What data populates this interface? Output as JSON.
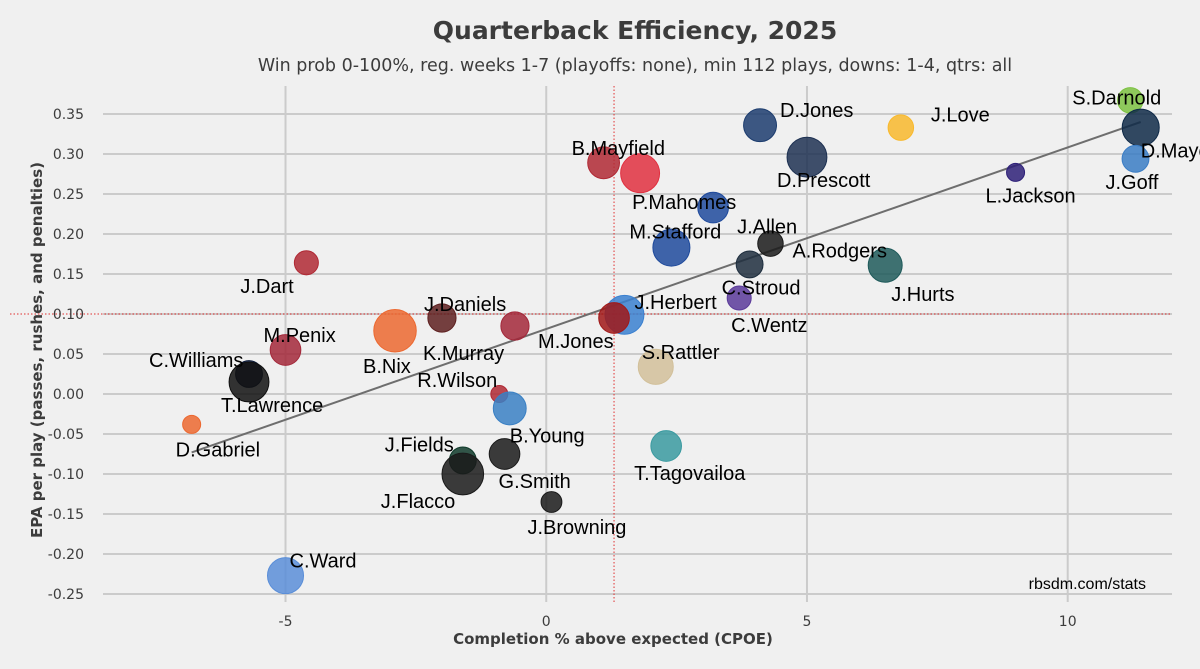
{
  "chart_data": {
    "type": "scatter",
    "title": "Quarterback Efficiency, 2025",
    "subtitle": "Win prob 0-100%, reg. weeks 1-7 (playoffs: none), min 112 plays, downs: 1-4, qtrs: all",
    "xlabel": "Completion % above expected (CPOE)",
    "ylabel": "EPA per play (passes, rushes, and penalties)",
    "credit": "rbsdm.com/stats",
    "xlim": [
      -8.5,
      12
    ],
    "ylim": [
      -0.26,
      0.385
    ],
    "x_ticks": [
      -5,
      0,
      5,
      10
    ],
    "x_tick_labels": [
      "-5",
      "0",
      "5",
      "10"
    ],
    "y_ticks": [
      -0.25,
      -0.2,
      -0.15,
      -0.1,
      -0.05,
      0.0,
      0.05,
      0.1,
      0.15,
      0.2,
      0.25,
      0.3,
      0.35
    ],
    "y_tick_labels": [
      "-0.25",
      "-0.20",
      "-0.15",
      "-0.10",
      "-0.05",
      "0.00",
      "0.05",
      "0.10",
      "0.15",
      "0.20",
      "0.25",
      "0.30",
      "0.35"
    ],
    "reference_lines": {
      "x": 1.3,
      "y": 0.1
    },
    "trend_line": {
      "x": [
        -6.8,
        11.4
      ],
      "y": [
        -0.073,
        0.34
      ]
    },
    "grid": true,
    "points": [
      {
        "label": "S.Darnold",
        "x": 11.2,
        "y": 0.367,
        "size": 180,
        "color": "#7dc242",
        "lx": -58,
        "ly": 4
      },
      {
        "label": "D.Maye",
        "x": 11.4,
        "y": 0.333,
        "size": 380,
        "color": "#0f2a48",
        "lx": 0,
        "ly": 30
      },
      {
        "label": "J.Goff",
        "x": 11.3,
        "y": 0.294,
        "size": 200,
        "color": "#3a7cc4",
        "lx": -30,
        "ly": 30
      },
      {
        "label": "J.Love",
        "x": 6.8,
        "y": 0.333,
        "size": 180,
        "color": "#f8b92d",
        "lx": 30,
        "ly": -6
      },
      {
        "label": "D.Jones",
        "x": 4.1,
        "y": 0.336,
        "size": 300,
        "color": "#1c3c6e",
        "lx": 20,
        "ly": -8
      },
      {
        "label": "D.Prescott",
        "x": 5.0,
        "y": 0.296,
        "size": 440,
        "color": "#1e3152",
        "lx": -30,
        "ly": 30
      },
      {
        "label": "L.Jackson",
        "x": 9.0,
        "y": 0.277,
        "size": 90,
        "color": "#2e2078",
        "lx": -30,
        "ly": 30
      },
      {
        "label": "B.Mayfield",
        "x": 1.1,
        "y": 0.289,
        "size": 280,
        "color": "#b02934",
        "lx": -32,
        "ly": -8
      },
      {
        "label": "P.Mahomes",
        "x": 1.8,
        "y": 0.276,
        "size": 420,
        "color": "#e03040",
        "lx": -8,
        "ly": 36
      },
      {
        "label": "J.Allen",
        "x": 3.2,
        "y": 0.233,
        "size": 260,
        "color": "#1f4a9c",
        "lx": 24,
        "ly": 26
      },
      {
        "label": "M.Stafford",
        "x": 2.4,
        "y": 0.183,
        "size": 380,
        "color": "#1f4a9c",
        "lx": -42,
        "ly": -9
      },
      {
        "label": "A.Rodgers",
        "x": 4.3,
        "y": 0.188,
        "size": 180,
        "color": "#1a1a1a",
        "lx": 22,
        "ly": 14
      },
      {
        "label": "C.Stroud",
        "x": 3.9,
        "y": 0.162,
        "size": 200,
        "color": "#1e2e3e",
        "lx": -28,
        "ly": 30
      },
      {
        "label": "J.Hurts",
        "x": 6.5,
        "y": 0.161,
        "size": 320,
        "color": "#1e5a5a",
        "lx": 6,
        "ly": 36
      },
      {
        "label": "C.Wentz",
        "x": 3.7,
        "y": 0.12,
        "size": 160,
        "color": "#5b3a9a",
        "lx": -8,
        "ly": 34
      },
      {
        "label": "J.Herbert",
        "x": 1.5,
        "y": 0.099,
        "size": 420,
        "color": "#3a80d0",
        "lx": 10,
        "ly": -6
      },
      {
        "label": "M.Jones",
        "x": 1.3,
        "y": 0.095,
        "size": 260,
        "color": "#a01818",
        "lx": -76,
        "ly": 30
      },
      {
        "label": "J.Daniels",
        "x": -2.0,
        "y": 0.095,
        "size": 220,
        "color": "#5e2020",
        "lx": -18,
        "ly": -7
      },
      {
        "label": "K.Murray",
        "x": -0.6,
        "y": 0.085,
        "size": 220,
        "color": "#a3283a",
        "lx": -92,
        "ly": 34
      },
      {
        "label": "B.Nix",
        "x": -2.9,
        "y": 0.079,
        "size": 500,
        "color": "#ec6830",
        "lx": -32,
        "ly": 42
      },
      {
        "label": "M.Penix",
        "x": -5.0,
        "y": 0.055,
        "size": 260,
        "color": "#a3283a",
        "lx": -22,
        "ly": -8
      },
      {
        "label": "J.Dart",
        "x": -4.6,
        "y": 0.164,
        "size": 160,
        "color": "#b02934",
        "lx": -66,
        "ly": 30
      },
      {
        "label": "C.Williams",
        "x": -5.7,
        "y": 0.025,
        "size": 200,
        "color": "#0c1a38",
        "lx": -100,
        "ly": -7
      },
      {
        "label": "T.Lawrence",
        "x": -5.7,
        "y": 0.015,
        "size": 440,
        "color": "#101010",
        "lx": -28,
        "ly": 30
      },
      {
        "label": "D.Gabriel",
        "x": -6.8,
        "y": -0.038,
        "size": 90,
        "color": "#ec6830",
        "lx": -16,
        "ly": 32
      },
      {
        "label": "R.Wilson",
        "x": -0.9,
        "y": 0.0,
        "size": 80,
        "color": "#b02934",
        "lx": -82,
        "ly": -7
      },
      {
        "label": "B.Young",
        "x": -0.7,
        "y": -0.018,
        "size": 300,
        "color": "#3a80c4",
        "lx": 0,
        "ly": 34
      },
      {
        "label": "J.Fields",
        "x": -1.6,
        "y": -0.083,
        "size": 200,
        "color": "#0f3a2a",
        "lx": -78,
        "ly": -9
      },
      {
        "label": "J.Flacco",
        "x": -1.6,
        "y": -0.1,
        "size": 480,
        "color": "#1a1a1a",
        "lx": -82,
        "ly": 34
      },
      {
        "label": "G.Smith",
        "x": -0.8,
        "y": -0.075,
        "size": 260,
        "color": "#1a1a1a",
        "lx": -6,
        "ly": 34
      },
      {
        "label": "J.Browning",
        "x": 0.1,
        "y": -0.135,
        "size": 120,
        "color": "#1a1a1a",
        "lx": -24,
        "ly": 32
      },
      {
        "label": "T.Tagovailoa",
        "x": 2.3,
        "y": -0.065,
        "size": 260,
        "color": "#3a9aa0",
        "lx": -32,
        "ly": 34
      },
      {
        "label": "S.Rattler",
        "x": 2.1,
        "y": 0.034,
        "size": 340,
        "color": "#d2c09a",
        "lx": -14,
        "ly": -8
      },
      {
        "label": "C.Ward",
        "x": -5.0,
        "y": -0.227,
        "size": 360,
        "color": "#5a8ed8",
        "lx": 4,
        "ly": -8
      }
    ]
  }
}
